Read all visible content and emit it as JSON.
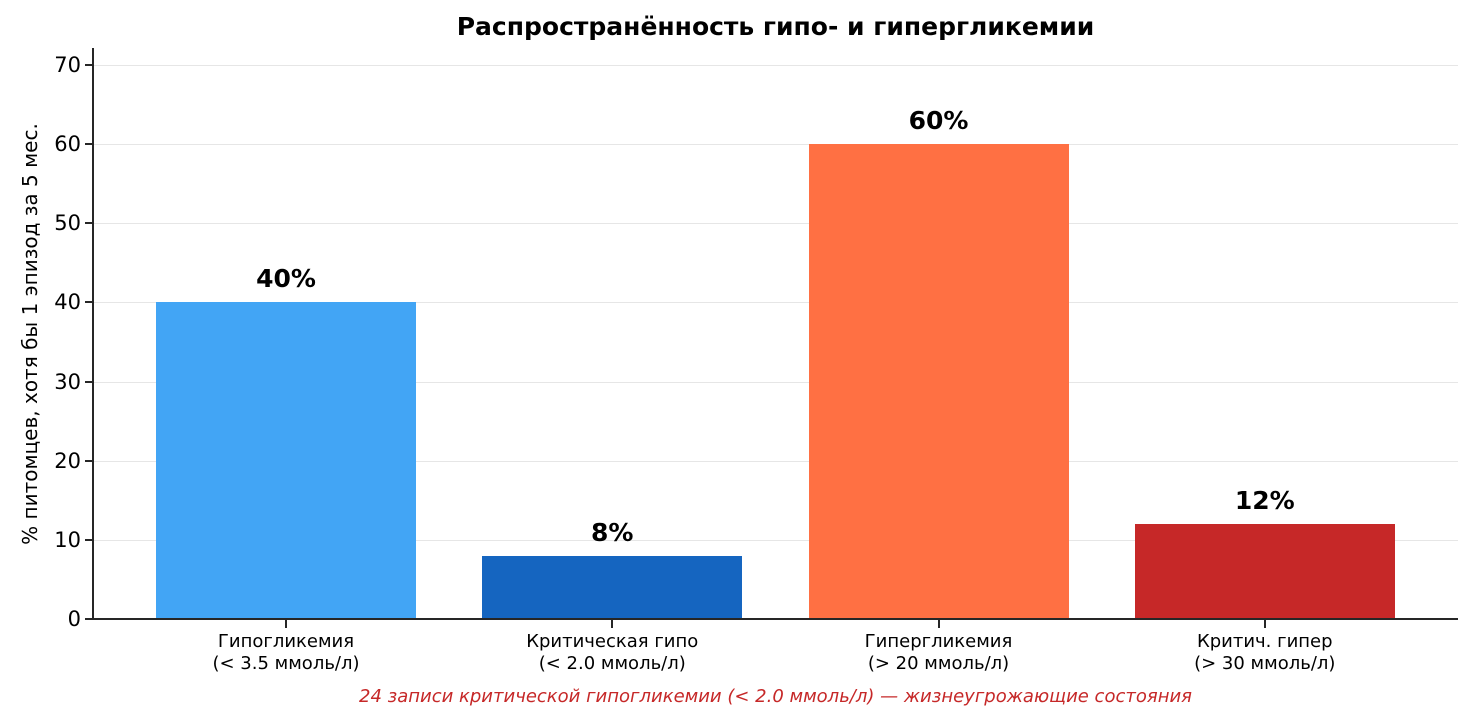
{
  "chart_data": {
    "type": "bar",
    "title": "Распространённость гипо- и гипергликемии",
    "xlabel": "",
    "ylabel": "% питомцев, хотя бы 1 эпизод за 5 мес.",
    "ylim": [
      0,
      72
    ],
    "yticks": [
      0,
      10,
      20,
      30,
      40,
      50,
      60,
      70
    ],
    "grid": "horizontal",
    "categories": [
      "Гипогликемия\n(< 3.5 ммоль/л)",
      "Критическая гипо\n(< 2.0 ммоль/л)",
      "Гипергликемия\n(> 20 ммоль/л)",
      "Критич. гипер\n(> 30 ммоль/л)"
    ],
    "values": [
      40,
      8,
      60,
      12
    ],
    "data_labels": [
      "40%",
      "8%",
      "60%",
      "12%"
    ],
    "colors": [
      "#42a5f5",
      "#1565c0",
      "#ff7043",
      "#c62828"
    ],
    "annotation": "24 записи критической гипогликемии (< 2.0 ммоль/л) — жизнеугрожающие состояния"
  },
  "title": "Распространённость гипо- и гипергликемии",
  "ylabel": "% питомцев, хотя бы 1 эпизод за 5 мес.",
  "yticks": [
    "0",
    "10",
    "20",
    "30",
    "40",
    "50",
    "60",
    "70"
  ],
  "bars": [
    {
      "line1": "Гипогликемия",
      "line2": "(< 3.5 ммоль/л)",
      "label": "40%"
    },
    {
      "line1": "Критическая гипо",
      "line2": "(< 2.0 ммоль/л)",
      "label": "8%"
    },
    {
      "line1": "Гипергликемия",
      "line2": "(> 20 ммоль/л)",
      "label": "60%"
    },
    {
      "line1": "Критич. гипер",
      "line2": "(> 30 ммоль/л)",
      "label": "12%"
    }
  ],
  "note": "24 записи критической гипогликемии (< 2.0 ммоль/л) — жизнеугрожающие состояния"
}
